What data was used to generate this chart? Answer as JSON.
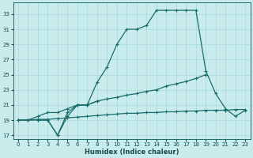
{
  "title": "",
  "xlabel": "Humidex (Indice chaleur)",
  "xlim": [
    -0.5,
    23.5
  ],
  "ylim": [
    16.5,
    34.5
  ],
  "xticks": [
    0,
    1,
    2,
    3,
    4,
    5,
    6,
    7,
    8,
    9,
    10,
    11,
    12,
    13,
    14,
    15,
    16,
    17,
    18,
    19,
    20,
    21,
    22,
    23
  ],
  "yticks": [
    17,
    19,
    21,
    23,
    25,
    27,
    29,
    31,
    33
  ],
  "bg_color": "#c8ecec",
  "grid_color": "#a8d8d8",
  "line_color": "#1a6b6b",
  "series1_x": [
    0,
    1,
    2,
    3,
    4,
    5,
    6,
    7,
    8,
    9,
    10,
    11,
    12,
    13,
    14,
    15,
    16,
    17,
    18,
    19,
    20,
    21,
    22,
    23
  ],
  "series1_y": [
    19.0,
    19.0,
    19.1,
    19.1,
    19.2,
    19.3,
    19.4,
    19.5,
    19.6,
    19.7,
    19.8,
    19.9,
    19.9,
    20.0,
    20.0,
    20.1,
    20.1,
    20.2,
    20.2,
    20.3,
    20.3,
    20.3,
    20.4,
    20.4
  ],
  "series2_x": [
    0,
    1,
    2,
    3,
    4,
    5,
    6,
    7,
    8,
    9,
    10,
    11,
    12,
    13,
    14,
    15,
    16,
    17,
    18,
    19
  ],
  "series2_y": [
    19.0,
    19.0,
    19.5,
    20.0,
    20.0,
    20.5,
    21.0,
    21.0,
    21.5,
    21.8,
    22.0,
    22.3,
    22.5,
    22.8,
    23.0,
    23.5,
    23.8,
    24.1,
    24.5,
    25.0
  ],
  "series3_x": [
    0,
    1,
    2,
    3,
    4,
    5,
    6,
    7,
    8
  ],
  "series3_y": [
    19.0,
    19.0,
    19.0,
    19.0,
    17.0,
    19.5,
    21.0,
    21.0,
    21.5
  ],
  "series4_x": [
    2,
    3,
    4,
    5,
    6,
    7,
    8,
    9,
    10,
    11,
    12,
    13,
    14,
    15,
    16,
    17,
    18,
    19,
    20,
    21,
    22,
    23
  ],
  "series4_y": [
    19.0,
    19.0,
    17.0,
    20.0,
    21.0,
    21.0,
    24.0,
    26.0,
    29.0,
    31.0,
    31.0,
    31.5,
    33.5,
    33.5,
    33.5,
    33.5,
    33.5,
    25.5,
    22.5,
    20.5,
    19.5,
    20.3
  ]
}
